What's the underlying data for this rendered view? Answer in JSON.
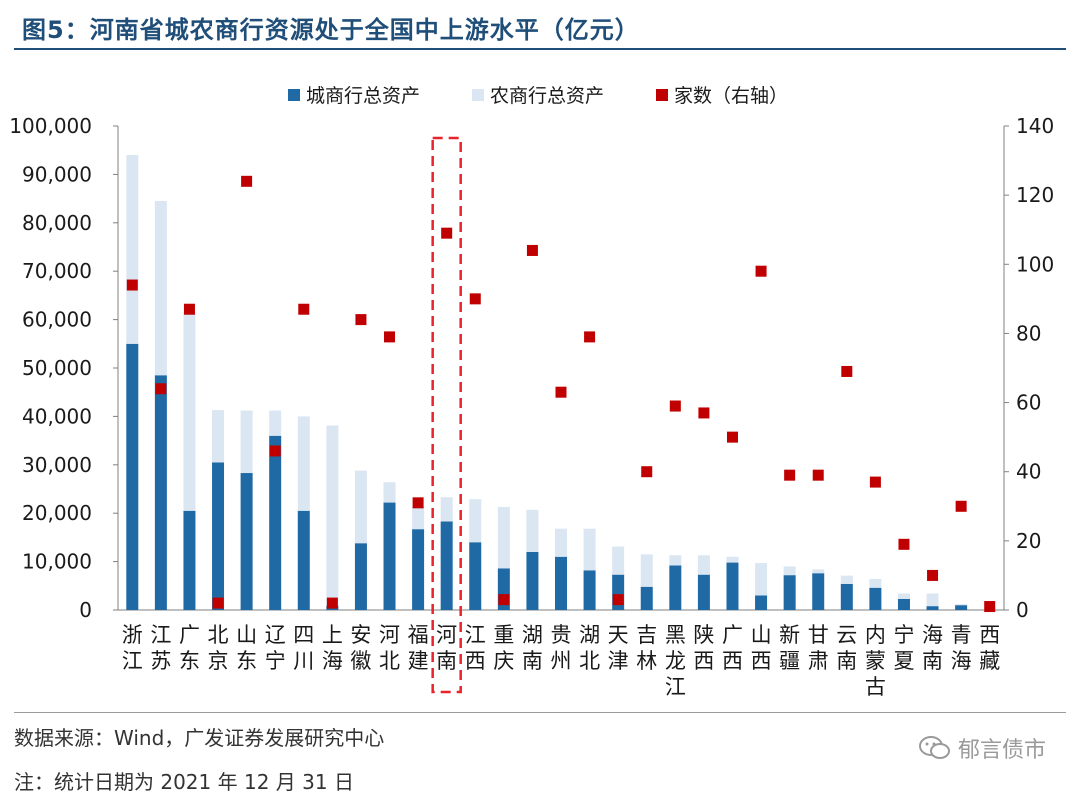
{
  "title": "图5：河南省城农商行资源处于全国中上游水平（亿元）",
  "source": "数据来源：Wind，广发证券发展研究中心",
  "note": "注：统计日期为 2021 年 12 月 31 日",
  "watermark": "郁言债市",
  "colors": {
    "city_bank": "#1f6aa5",
    "rural_bank": "#dbe6f3",
    "count": "#c00000",
    "highlight": "#e8232a",
    "title": "#1f4e79"
  },
  "chart_data": {
    "type": "bar",
    "stacked": true,
    "categories": [
      "浙江",
      "江苏",
      "广东",
      "北京",
      "山东",
      "辽宁",
      "四川",
      "上海",
      "安徽",
      "河北",
      "福建",
      "河南",
      "江西",
      "重庆",
      "湖南",
      "贵州",
      "湖北",
      "天津",
      "吉林",
      "黑龙江",
      "陕西",
      "广西",
      "山西",
      "新疆",
      "甘肃",
      "云南",
      "内蒙古",
      "宁夏",
      "海南",
      "青海",
      "西藏"
    ],
    "series": [
      {
        "name": "城商行总资产",
        "axis": "left",
        "values": [
          55000,
          48500,
          20500,
          30500,
          28300,
          36000,
          20500,
          900,
          13800,
          22200,
          16700,
          18300,
          14000,
          8600,
          12000,
          11000,
          8200,
          7300,
          4800,
          9200,
          7300,
          9800,
          3000,
          7200,
          7600,
          5400,
          4600,
          2300,
          800,
          1000,
          0
        ]
      },
      {
        "name": "农商行总资产",
        "axis": "left",
        "values": [
          39000,
          36000,
          41000,
          10800,
          12900,
          5200,
          19500,
          37200,
          15000,
          4200,
          4700,
          5000,
          8900,
          12700,
          8700,
          5800,
          8600,
          5800,
          6700,
          2100,
          4000,
          1200,
          6700,
          1800,
          800,
          1700,
          1800,
          1100,
          2600,
          200,
          0
        ]
      },
      {
        "name": "家数（右轴）",
        "axis": "right",
        "type": "scatter",
        "values": [
          94,
          64,
          87,
          2,
          124,
          46,
          87,
          2,
          84,
          79,
          31,
          109,
          90,
          3,
          104,
          63,
          79,
          3,
          40,
          59,
          57,
          50,
          98,
          39,
          39,
          69,
          37,
          19,
          10,
          30,
          1
        ]
      }
    ],
    "ylim_left": [
      0,
      100000
    ],
    "yticks_left": [
      "0",
      "10,000",
      "20,000",
      "30,000",
      "40,000",
      "50,000",
      "60,000",
      "70,000",
      "80,000",
      "90,000",
      "100,000"
    ],
    "ylim_right": [
      0,
      140
    ],
    "yticks_right": [
      "0",
      "20",
      "40",
      "60",
      "80",
      "100",
      "120",
      "140"
    ],
    "legend_position": "top-center",
    "highlight_category": "河南",
    "grid": false
  }
}
